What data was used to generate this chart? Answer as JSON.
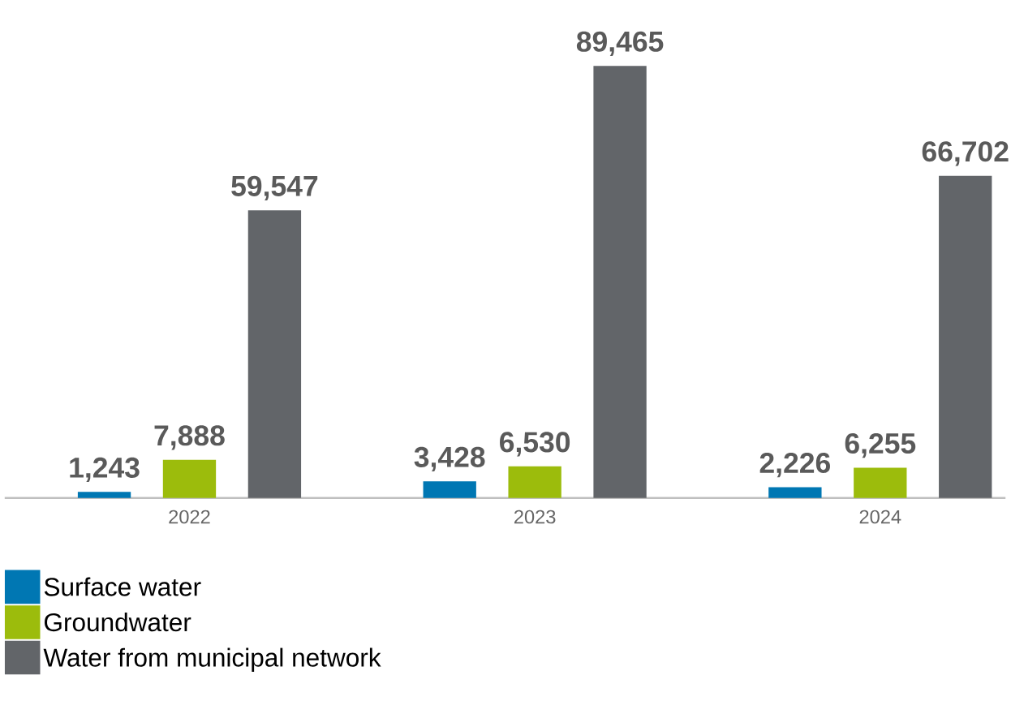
{
  "chart_data": {
    "type": "bar",
    "categories": [
      "2022",
      "2023",
      "2024"
    ],
    "series": [
      {
        "name": "Surface water",
        "color": "#0077b3",
        "values": [
          1243,
          3428,
          2226
        ],
        "value_labels": [
          "1,243",
          "3,428",
          "2,226"
        ]
      },
      {
        "name": "Groundwater",
        "color": "#9cbc0c",
        "values": [
          7888,
          6530,
          6255
        ],
        "value_labels": [
          "7,888",
          "6,530",
          "6,255"
        ]
      },
      {
        "name": "Water from municipal network",
        "color": "#626569",
        "values": [
          59547,
          89465,
          66702
        ],
        "value_labels": [
          "59,547",
          "89,465",
          "66,702"
        ]
      }
    ],
    "legend": "bottom"
  }
}
